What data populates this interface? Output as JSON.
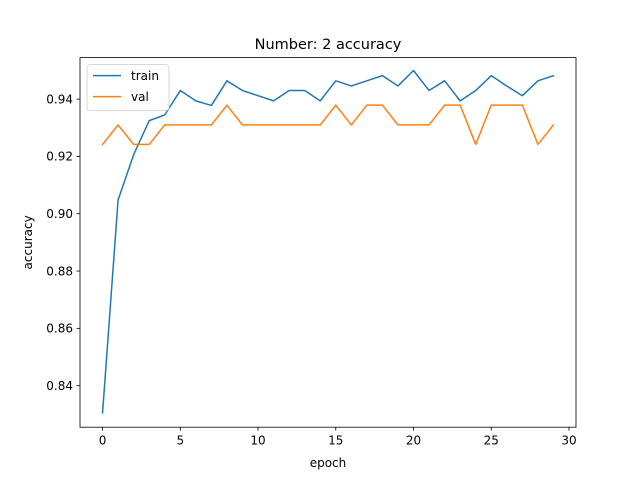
{
  "chart_data": {
    "type": "line",
    "title": "Number: 2 accuracy",
    "xlabel": "epoch",
    "ylabel": "accuracy",
    "xlim": [
      -1.45,
      30.45
    ],
    "ylim": [
      0.8255,
      0.9545
    ],
    "xticks": [
      0,
      5,
      10,
      15,
      20,
      25,
      30
    ],
    "yticks": [
      0.84,
      0.86,
      0.88,
      0.9,
      0.92,
      0.94
    ],
    "xtick_labels": [
      "0",
      "5",
      "10",
      "15",
      "20",
      "25",
      "30"
    ],
    "ytick_labels": [
      "0.84",
      "0.86",
      "0.88",
      "0.90",
      "0.92",
      "0.94"
    ],
    "legend_position": "top-left",
    "grid": false,
    "x": [
      0,
      1,
      2,
      3,
      4,
      5,
      6,
      7,
      8,
      9,
      10,
      11,
      12,
      13,
      14,
      15,
      16,
      17,
      18,
      19,
      20,
      21,
      22,
      23,
      24,
      25,
      26,
      27,
      28,
      29
    ],
    "series": [
      {
        "name": "train",
        "color": "#1f77b4",
        "values": [
          0.8305,
          0.9048,
          0.9206,
          0.9325,
          0.9345,
          0.943,
          0.9394,
          0.9378,
          0.9464,
          0.943,
          0.9412,
          0.9394,
          0.943,
          0.943,
          0.9394,
          0.9464,
          0.9446,
          0.9464,
          0.9482,
          0.9446,
          0.95,
          0.943,
          0.9464,
          0.9394,
          0.943,
          0.9482,
          0.9446,
          0.9412,
          0.9464,
          0.9482
        ]
      },
      {
        "name": "val",
        "color": "#ff7f0e",
        "values": [
          0.9242,
          0.931,
          0.9242,
          0.9242,
          0.931,
          0.931,
          0.931,
          0.931,
          0.9379,
          0.931,
          0.931,
          0.931,
          0.931,
          0.931,
          0.931,
          0.9379,
          0.931,
          0.9379,
          0.9379,
          0.931,
          0.931,
          0.931,
          0.9379,
          0.9379,
          0.9242,
          0.9379,
          0.9379,
          0.9379,
          0.9242,
          0.931
        ]
      }
    ]
  }
}
